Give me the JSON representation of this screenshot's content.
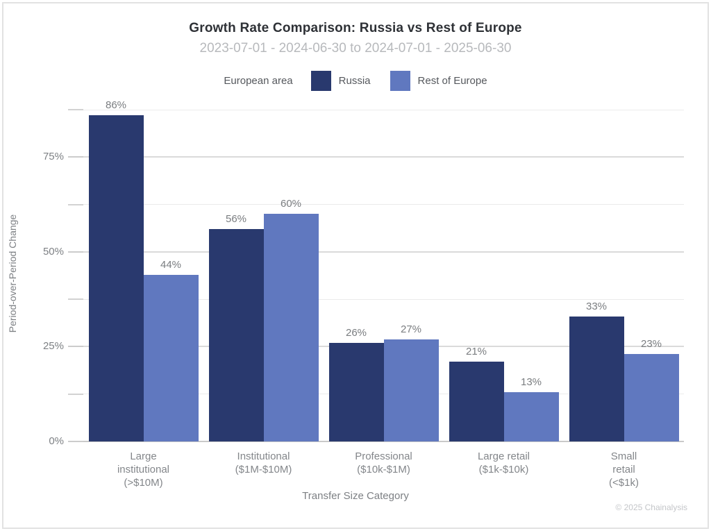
{
  "header": {
    "title": "Growth Rate Comparison: Russia vs Rest of Europe",
    "subtitle": "2023-07-01 - 2024-06-30 to 2024-07-01 - 2025-06-30"
  },
  "legend": {
    "label": "European area",
    "items": [
      {
        "name": "Russia",
        "color": "#29396e"
      },
      {
        "name": "Rest of Europe",
        "color": "#6078bf"
      }
    ]
  },
  "chart_data": {
    "type": "bar",
    "title": "Growth Rate Comparison: Russia vs Rest of Europe",
    "subtitle": "2023-07-01 - 2024-06-30 to 2024-07-01 - 2025-06-30",
    "xlabel": "Transfer Size Category",
    "ylabel": "Period-over-Period Change",
    "legend_title": "European area",
    "legend_position": "top",
    "grid": true,
    "categories": [
      {
        "label": "Large institutional (>$10M)",
        "lines": [
          "Large",
          "institutional",
          "(>$10M)"
        ]
      },
      {
        "label": "Institutional ($1M-$10M)",
        "lines": [
          "Institutional",
          "($1M-$10M)"
        ]
      },
      {
        "label": "Professional ($10k-$1M)",
        "lines": [
          "Professional",
          "($10k-$1M)"
        ]
      },
      {
        "label": "Large retail ($1k-$10k)",
        "lines": [
          "Large retail",
          "($1k-$10k)"
        ]
      },
      {
        "label": "Small retail (<$1k)",
        "lines": [
          "Small",
          "retail",
          "(<$1k)"
        ]
      }
    ],
    "series": [
      {
        "name": "Russia",
        "color": "#29396e",
        "values": [
          86,
          56,
          26,
          21,
          33
        ]
      },
      {
        "name": "Rest of Europe",
        "color": "#6078bf",
        "values": [
          44,
          60,
          27,
          13,
          23
        ]
      }
    ],
    "value_label_format": "{v}%",
    "yticks": [
      0,
      25,
      50,
      75
    ],
    "ytick_labels": [
      "0%",
      "25%",
      "50%",
      "75%"
    ],
    "minor_tick_interval": 12.5,
    "ylim": [
      0,
      89
    ]
  },
  "footer": {
    "copyright": "© 2025 Chainalysis"
  },
  "colors": {
    "russia": "#29396e",
    "rest_of_europe": "#6078bf",
    "grid_major": "#dadada",
    "grid_minor": "#ebebeb",
    "grid_zero": "#c9c9c9",
    "axis_text": "#7d8084",
    "title_text": "#2e3136",
    "subtitle_text": "#b7b9bc"
  }
}
